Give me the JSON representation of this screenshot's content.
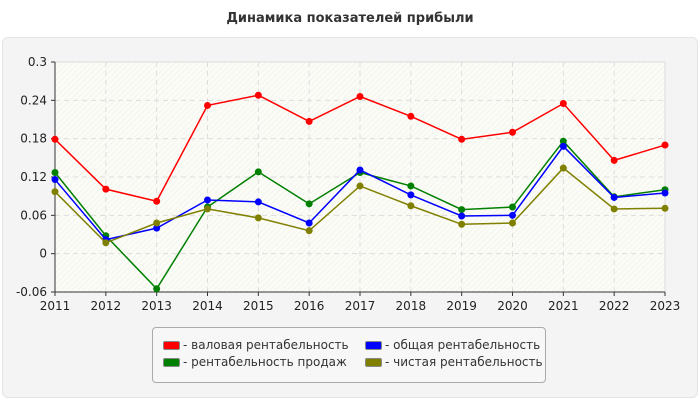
{
  "chart_data": {
    "type": "line",
    "title": "Динамика показателей прибыли",
    "xlabel": "",
    "ylabel": "",
    "x": [
      2011,
      2012,
      2013,
      2014,
      2015,
      2016,
      2017,
      2018,
      2019,
      2020,
      2021,
      2022,
      2023
    ],
    "ylim": [
      -0.06,
      0.3
    ],
    "yticks": [
      -0.06,
      0,
      0.06,
      0.12,
      0.18,
      0.24,
      0.3
    ],
    "ytick_labels": [
      "-0.06",
      "0",
      "0.06",
      "0.12",
      "0.18",
      "0.24",
      "0.3"
    ],
    "grid": true,
    "legend_position": "bottom",
    "series": [
      {
        "name": "валовая рентабельность",
        "color": "#ff0000",
        "values": [
          0.179,
          0.101,
          0.082,
          0.232,
          0.248,
          0.207,
          0.246,
          0.215,
          0.179,
          0.19,
          0.235,
          0.146,
          0.17
        ]
      },
      {
        "name": "рентабельность продаж",
        "color": "#008000",
        "values": [
          0.127,
          0.028,
          -0.055,
          0.073,
          0.128,
          0.078,
          0.127,
          0.106,
          0.069,
          0.073,
          0.176,
          0.089,
          0.1
        ]
      },
      {
        "name": "общая рентабельность",
        "color": "#0000ff",
        "values": [
          0.116,
          0.022,
          0.04,
          0.084,
          0.081,
          0.048,
          0.131,
          0.092,
          0.059,
          0.06,
          0.168,
          0.088,
          0.095
        ]
      },
      {
        "name": "чистая рентабельность",
        "color": "#808000",
        "values": [
          0.097,
          0.017,
          0.048,
          0.07,
          0.056,
          0.036,
          0.106,
          0.075,
          0.046,
          0.048,
          0.134,
          0.07,
          0.071
        ]
      }
    ]
  }
}
